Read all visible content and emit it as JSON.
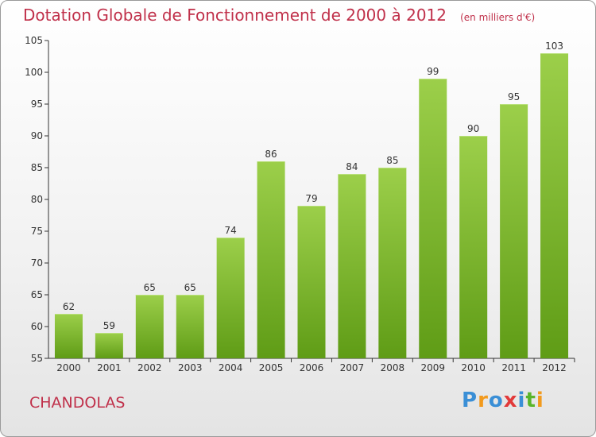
{
  "chart_data": {
    "type": "bar",
    "title": "Dotation Globale de Fonctionnement de 2000 à 2012",
    "unit_label": "(en milliers d'€)",
    "categories": [
      "2000",
      "2001",
      "2002",
      "2003",
      "2004",
      "2005",
      "2006",
      "2007",
      "2008",
      "2009",
      "2010",
      "2011",
      "2012"
    ],
    "values": [
      62,
      59,
      65,
      65,
      74,
      86,
      79,
      84,
      85,
      99,
      90,
      95,
      103
    ],
    "ylim": [
      55,
      105
    ],
    "yticks": [
      55,
      60,
      65,
      70,
      75,
      80,
      85,
      90,
      95,
      100,
      105
    ],
    "grid": false,
    "bar_color_top": "#9ccf4a",
    "bar_color_bottom": "#5f9c16"
  },
  "commune": "CHANDOLAS",
  "logo": {
    "text": "Proxiti",
    "letters": [
      {
        "ch": "P",
        "color": "#3a8fd6"
      },
      {
        "ch": "r",
        "color": "#f29a1d"
      },
      {
        "ch": "o",
        "color": "#3a8fd6"
      },
      {
        "ch": "x",
        "color": "#e23a3a"
      },
      {
        "ch": "i",
        "color": "#3a8fd6"
      },
      {
        "ch": "t",
        "color": "#5ab52a"
      },
      {
        "ch": "i",
        "color": "#f29a1d"
      }
    ]
  },
  "colors": {
    "title": "#c0304a",
    "axis": "#333333"
  }
}
